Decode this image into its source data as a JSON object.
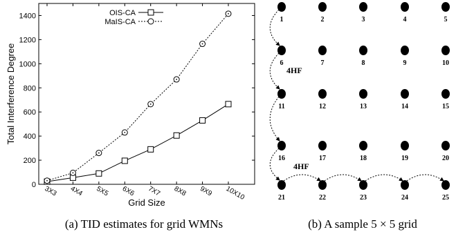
{
  "chart_data": {
    "type": "line",
    "categories": [
      "3X3",
      "4X4",
      "5X5",
      "6X6",
      "7X7",
      "8X8",
      "9X9",
      "10X10"
    ],
    "series": [
      {
        "name": "OIS-CA",
        "marker": "square",
        "line": "solid",
        "values": [
          22,
          55,
          90,
          195,
          290,
          405,
          530,
          665
        ]
      },
      {
        "name": "MaIS-CA",
        "marker": "circle",
        "line": "dashed",
        "values": [
          30,
          95,
          260,
          430,
          665,
          870,
          1165,
          1415
        ]
      }
    ],
    "xlabel": "Grid Size",
    "ylabel": "Total Interference Degree",
    "ylim": [
      0,
      1500
    ],
    "yticks": [
      0,
      200,
      400,
      600,
      800,
      1000,
      1200,
      1400
    ],
    "legend_position": "top-center",
    "grid": false
  },
  "grid_diagram": {
    "rows": 5,
    "cols": 5,
    "node_labels": [
      "1",
      "2",
      "3",
      "4",
      "5",
      "6",
      "7",
      "8",
      "9",
      "10",
      "11",
      "12",
      "13",
      "14",
      "15",
      "16",
      "17",
      "18",
      "19",
      "20",
      "21",
      "22",
      "23",
      "24",
      "25"
    ],
    "hop_labels": [
      "4HF",
      "4HF"
    ]
  },
  "captions": {
    "left": "(a) TID estimates for grid WMNs",
    "right": "(b) A sample 5 × 5 grid"
  }
}
